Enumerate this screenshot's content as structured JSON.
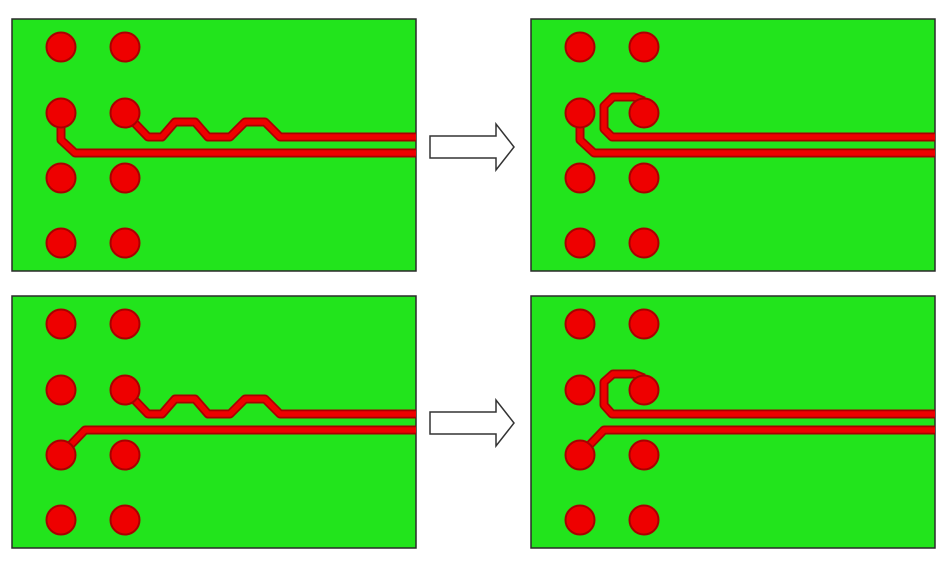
{
  "colors": {
    "board": "#22e41c",
    "board_border": "#2a2a2a",
    "copper": "#ee0000",
    "copper_edge": "#a80000",
    "arrow_fill": "#ffffff",
    "arrow_stroke": "#333333"
  },
  "panels": [
    {
      "id": "top-before",
      "variant": "wave-trace"
    },
    {
      "id": "top-after",
      "variant": "loop-trace"
    },
    {
      "id": "bottom-before",
      "variant": "wave-trace"
    },
    {
      "id": "bottom-after",
      "variant": "loop-trace"
    }
  ],
  "arrows": [
    {
      "direction": "right"
    },
    {
      "direction": "right"
    }
  ]
}
